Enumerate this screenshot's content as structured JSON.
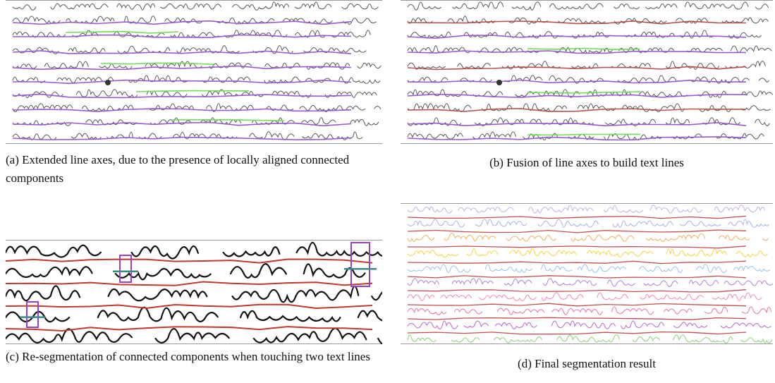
{
  "figures": [
    {
      "label": "(a)",
      "caption": "Extended line axes, due to the presence of locally aligned connected components"
    },
    {
      "label": "(b)",
      "caption": "Fusion of line axes to build text lines"
    },
    {
      "label": "(c)",
      "caption": "Re-segmentation of connected components when touching two text lines"
    },
    {
      "label": "(d)",
      "caption": "Final segmentation result"
    }
  ]
}
